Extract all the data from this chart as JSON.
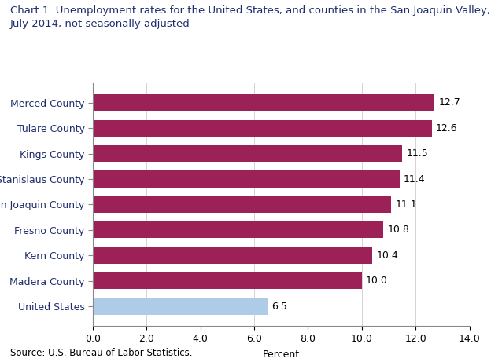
{
  "title_line1": "Chart 1. Unemployment rates for the United States, and counties in the San Joaquin Valley,",
  "title_line2": "July 2014, not seasonally adjusted",
  "categories": [
    "Merced County",
    "Tulare County",
    "Kings County",
    "Stanislaus County",
    "San Joaquin County",
    "Fresno County",
    "Kern County",
    "Madera County",
    "United States"
  ],
  "values": [
    12.7,
    12.6,
    11.5,
    11.4,
    11.1,
    10.8,
    10.4,
    10.0,
    6.5
  ],
  "bar_colors": [
    "#9B2157",
    "#9B2157",
    "#9B2157",
    "#9B2157",
    "#9B2157",
    "#9B2157",
    "#9B2157",
    "#9B2157",
    "#AECCE8"
  ],
  "xlim": [
    0,
    14.0
  ],
  "xticks": [
    0.0,
    2.0,
    4.0,
    6.0,
    8.0,
    10.0,
    12.0,
    14.0
  ],
  "xlabel": "Percent",
  "source": "Source: U.S. Bureau of Labor Statistics.",
  "title_fontsize": 9.5,
  "label_fontsize": 9,
  "tick_fontsize": 9,
  "value_fontsize": 9,
  "source_fontsize": 8.5,
  "title_color": "#1F2D6E",
  "label_color": "#1F2D6E",
  "background_color": "#ffffff"
}
